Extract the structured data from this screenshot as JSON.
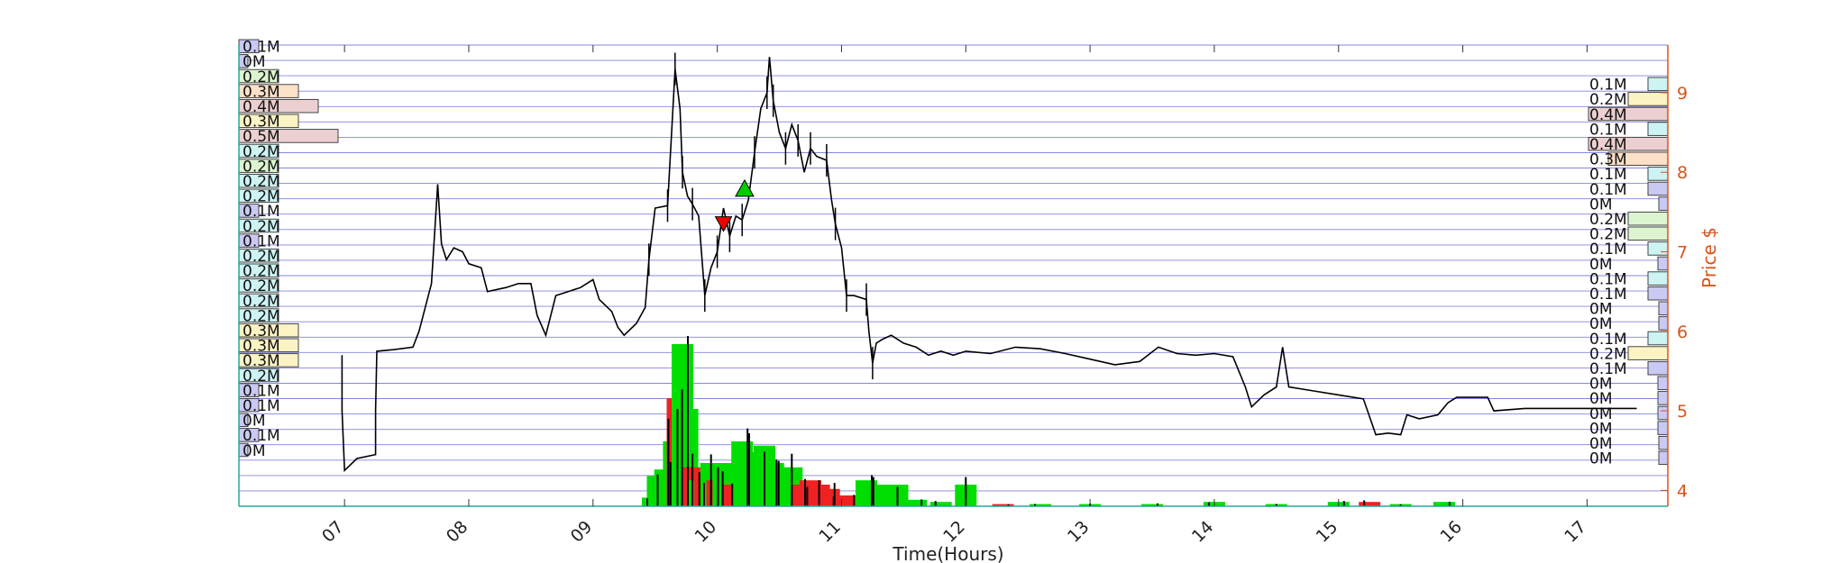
{
  "chart_data": {
    "type": "line",
    "subtype": "intraday price with volume bars and volume-at-price profiles",
    "xlabel": "Time(Hours)",
    "ylabel": "Price $",
    "x_ticks": [
      "07",
      "08",
      "09",
      "10",
      "11",
      "12",
      "13",
      "14",
      "15",
      "16",
      "17"
    ],
    "xlim": [
      6.15,
      17.65
    ],
    "y_ticks": [
      "4",
      "5",
      "6",
      "7",
      "8",
      "9"
    ],
    "ylim": [
      3.8,
      9.6
    ],
    "grid": "horizontal lines at price bins",
    "colors": {
      "price_line": "#000000",
      "volume_up": "#00dd00",
      "volume_down": "#ee2222",
      "grid": "#5b5bd6",
      "right_axis": "#d9541a",
      "box": "#26a69a",
      "profile_palette": [
        "#c9c9f3",
        "#cdf3f3",
        "#dcf5d0",
        "#fbf3c4",
        "#fce0c8",
        "#eccfd1"
      ]
    },
    "series": [
      {
        "kind": "price",
        "points": [
          [
            6.98,
            5.7
          ],
          [
            6.98,
            5.0
          ],
          [
            7.0,
            4.25
          ],
          [
            7.1,
            4.4
          ],
          [
            7.25,
            4.45
          ],
          [
            7.25,
            5.0
          ],
          [
            7.26,
            5.75
          ],
          [
            7.4,
            5.77
          ],
          [
            7.55,
            5.8
          ],
          [
            7.6,
            6.0
          ],
          [
            7.7,
            6.6
          ],
          [
            7.75,
            7.85
          ],
          [
            7.78,
            7.1
          ],
          [
            7.82,
            6.9
          ],
          [
            7.88,
            7.05
          ],
          [
            7.95,
            7.0
          ],
          [
            8.0,
            6.85
          ],
          [
            8.1,
            6.8
          ],
          [
            8.15,
            6.5
          ],
          [
            8.3,
            6.55
          ],
          [
            8.4,
            6.6
          ],
          [
            8.5,
            6.6
          ],
          [
            8.55,
            6.2
          ],
          [
            8.62,
            5.95
          ],
          [
            8.7,
            6.45
          ],
          [
            8.8,
            6.5
          ],
          [
            8.9,
            6.55
          ],
          [
            9.0,
            6.65
          ],
          [
            9.05,
            6.4
          ],
          [
            9.15,
            6.25
          ],
          [
            9.2,
            6.05
          ],
          [
            9.25,
            5.95
          ],
          [
            9.35,
            6.1
          ],
          [
            9.42,
            6.3
          ],
          [
            9.45,
            6.9
          ],
          [
            9.5,
            7.55
          ],
          [
            9.6,
            7.58
          ],
          [
            9.65,
            9.0
          ],
          [
            9.66,
            9.3
          ],
          [
            9.7,
            8.8
          ],
          [
            9.72,
            8.0
          ],
          [
            9.76,
            7.7
          ],
          [
            9.8,
            7.6
          ],
          [
            9.85,
            7.45
          ],
          [
            9.9,
            6.45
          ],
          [
            9.95,
            6.8
          ],
          [
            10.0,
            7.0
          ],
          [
            10.05,
            7.55
          ],
          [
            10.1,
            7.2
          ],
          [
            10.15,
            7.45
          ],
          [
            10.2,
            7.4
          ],
          [
            10.25,
            7.65
          ],
          [
            10.3,
            8.25
          ],
          [
            10.35,
            8.8
          ],
          [
            10.4,
            9.0
          ],
          [
            10.42,
            9.45
          ],
          [
            10.45,
            8.9
          ],
          [
            10.5,
            8.5
          ],
          [
            10.55,
            8.3
          ],
          [
            10.6,
            8.6
          ],
          [
            10.65,
            8.4
          ],
          [
            10.7,
            8.0
          ],
          [
            10.75,
            8.3
          ],
          [
            10.8,
            8.2
          ],
          [
            10.88,
            8.15
          ],
          [
            10.92,
            7.65
          ],
          [
            10.95,
            7.35
          ],
          [
            11.0,
            7.05
          ],
          [
            11.04,
            6.45
          ],
          [
            11.1,
            6.45
          ],
          [
            11.2,
            6.4
          ],
          [
            11.22,
            6.0
          ],
          [
            11.25,
            5.6
          ],
          [
            11.28,
            5.85
          ],
          [
            11.33,
            5.9
          ],
          [
            11.4,
            5.95
          ],
          [
            11.5,
            5.85
          ],
          [
            11.6,
            5.8
          ],
          [
            11.7,
            5.7
          ],
          [
            11.8,
            5.75
          ],
          [
            11.9,
            5.7
          ],
          [
            12.0,
            5.75
          ],
          [
            12.2,
            5.72
          ],
          [
            12.4,
            5.8
          ],
          [
            12.6,
            5.78
          ],
          [
            12.8,
            5.72
          ],
          [
            13.0,
            5.65
          ],
          [
            13.2,
            5.58
          ],
          [
            13.4,
            5.62
          ],
          [
            13.55,
            5.8
          ],
          [
            13.7,
            5.72
          ],
          [
            13.85,
            5.7
          ],
          [
            14.0,
            5.72
          ],
          [
            14.15,
            5.68
          ],
          [
            14.25,
            5.3
          ],
          [
            14.3,
            5.05
          ],
          [
            14.4,
            5.2
          ],
          [
            14.5,
            5.3
          ],
          [
            14.55,
            5.8
          ],
          [
            14.6,
            5.3
          ],
          [
            14.8,
            5.25
          ],
          [
            15.0,
            5.2
          ],
          [
            15.2,
            5.15
          ],
          [
            15.3,
            4.7
          ],
          [
            15.4,
            4.72
          ],
          [
            15.5,
            4.7
          ],
          [
            15.55,
            4.95
          ],
          [
            15.65,
            4.9
          ],
          [
            15.8,
            4.95
          ],
          [
            15.88,
            5.1
          ],
          [
            15.95,
            5.17
          ],
          [
            16.2,
            5.17
          ],
          [
            16.25,
            5.0
          ],
          [
            16.5,
            5.03
          ],
          [
            17.0,
            5.03
          ],
          [
            17.4,
            5.03
          ]
        ]
      },
      {
        "kind": "volume",
        "bars": [
          [
            9.48,
            0.04,
            1
          ],
          [
            9.52,
            0.14,
            1
          ],
          [
            9.58,
            0.17,
            1
          ],
          [
            9.65,
            0.3,
            1
          ],
          [
            9.68,
            0.5,
            0
          ],
          [
            9.72,
            0.75,
            1
          ],
          [
            9.76,
            0.45,
            1
          ],
          [
            9.8,
            0.18,
            0
          ],
          [
            9.85,
            0.12,
            1
          ],
          [
            9.9,
            0.15,
            0
          ],
          [
            9.95,
            0.2,
            1
          ],
          [
            10.0,
            0.12,
            0
          ],
          [
            10.05,
            0.2,
            1
          ],
          [
            10.12,
            0.1,
            0
          ],
          [
            10.2,
            0.3,
            1
          ],
          [
            10.3,
            0.25,
            1
          ],
          [
            10.38,
            0.28,
            1
          ],
          [
            10.45,
            0.2,
            1
          ],
          [
            10.52,
            0.18,
            1
          ],
          [
            10.6,
            0.18,
            1
          ],
          [
            10.68,
            0.1,
            0
          ],
          [
            10.75,
            0.12,
            0
          ],
          [
            10.82,
            0.1,
            0
          ],
          [
            10.9,
            0.08,
            0
          ],
          [
            10.98,
            0.05,
            0
          ],
          [
            11.1,
            0.05,
            0
          ],
          [
            11.2,
            0.12,
            1
          ],
          [
            11.3,
            0.1,
            1
          ],
          [
            11.45,
            0.1,
            1
          ],
          [
            11.6,
            0.03,
            1
          ],
          [
            11.8,
            0.02,
            1
          ],
          [
            12.0,
            0.1,
            1
          ],
          [
            12.3,
            0.01,
            0
          ],
          [
            12.6,
            0.01,
            1
          ],
          [
            13.0,
            0.01,
            1
          ],
          [
            13.5,
            0.01,
            1
          ],
          [
            14.0,
            0.02,
            1
          ],
          [
            14.5,
            0.01,
            1
          ],
          [
            15.0,
            0.02,
            1
          ],
          [
            15.25,
            0.02,
            0
          ],
          [
            15.5,
            0.01,
            1
          ],
          [
            15.85,
            0.02,
            1
          ]
        ]
      }
    ],
    "profile_left": {
      "labels": [
        "0.1M",
        "0M",
        "0.2M",
        "0.3M",
        "0.4M",
        "0.3M",
        "0.5M",
        "0.2M",
        "0.2M",
        "0.2M",
        "0.2M",
        "0.1M",
        "0.2M",
        "0.1M",
        "0.2M",
        "0.2M",
        "0.2M",
        "0.2M",
        "0.2M",
        "0.3M",
        "0.3M",
        "0.3M",
        "0.2M",
        "0.1M",
        "0.1M",
        "0M",
        "0.1M",
        "0M"
      ],
      "values": [
        0.1,
        0.02,
        0.2,
        0.3,
        0.4,
        0.3,
        0.5,
        0.2,
        0.2,
        0.2,
        0.2,
        0.1,
        0.2,
        0.1,
        0.2,
        0.2,
        0.2,
        0.2,
        0.2,
        0.3,
        0.3,
        0.3,
        0.2,
        0.1,
        0.1,
        0.02,
        0.1,
        0.02
      ],
      "colors": [
        0,
        0,
        2,
        4,
        5,
        3,
        5,
        1,
        2,
        1,
        1,
        0,
        1,
        0,
        1,
        1,
        1,
        1,
        1,
        3,
        3,
        3,
        1,
        0,
        0,
        0,
        0,
        0
      ]
    },
    "profile_right": {
      "labels": [
        "0.1M",
        "0.2M",
        "0.4M",
        "0.1M",
        "0.4M",
        "0.3M",
        "0.1M",
        "0.1M",
        "0M",
        "0.2M",
        "0.2M",
        "0.1M",
        "0M",
        "0.1M",
        "0.1M",
        "0M",
        "0M",
        "0.1M",
        "0.2M",
        "0.1M",
        "0M",
        "0M",
        "0M",
        "0M",
        "0M",
        "0M"
      ],
      "values": [
        0.1,
        0.2,
        0.4,
        0.1,
        0.4,
        0.3,
        0.1,
        0.1,
        0.04,
        0.2,
        0.2,
        0.1,
        0.05,
        0.1,
        0.1,
        0.04,
        0.04,
        0.1,
        0.2,
        0.1,
        0.05,
        0.05,
        0.05,
        0.05,
        0.04,
        0.04
      ],
      "colors": [
        1,
        3,
        5,
        1,
        5,
        4,
        1,
        0,
        0,
        2,
        2,
        1,
        0,
        1,
        0,
        0,
        0,
        1,
        3,
        0,
        0,
        0,
        0,
        0,
        0,
        0
      ]
    },
    "annotations": [
      {
        "type": "sell-marker",
        "x": 10.05,
        "y": 7.35,
        "color": "#ee0000"
      },
      {
        "type": "buy-marker",
        "x": 10.22,
        "y": 7.8,
        "color": "#00cc00"
      }
    ]
  }
}
